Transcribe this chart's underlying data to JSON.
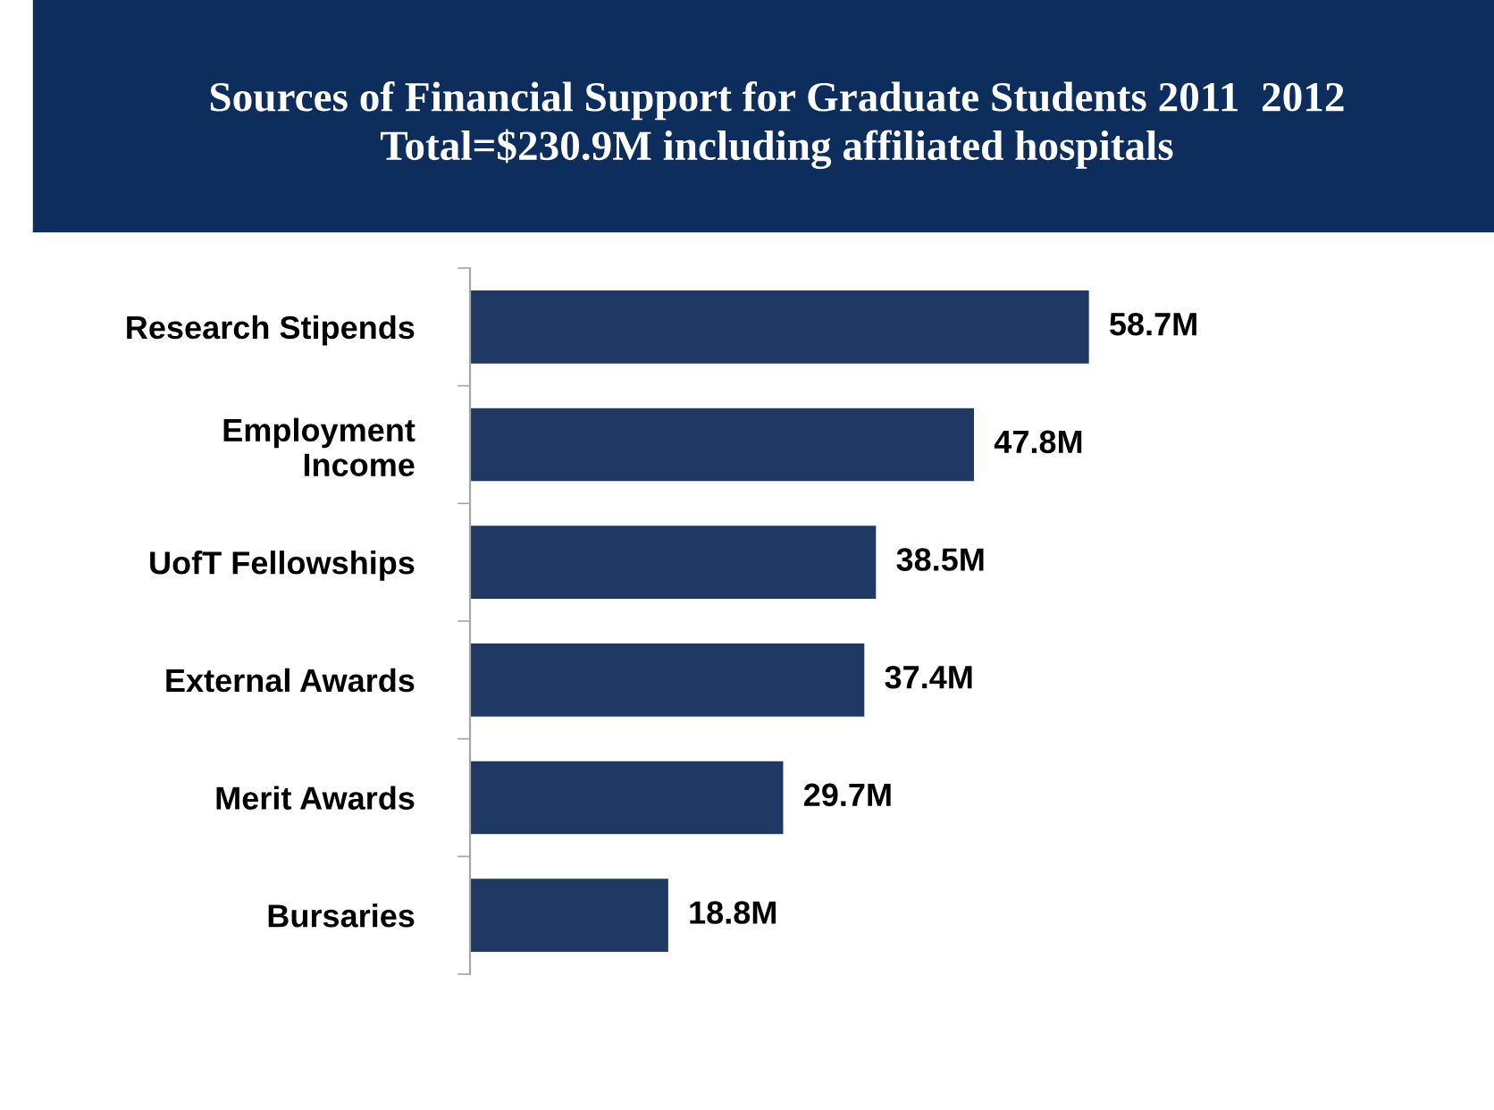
{
  "chart_data": {
    "type": "bar",
    "orientation": "horizontal",
    "title": "Sources of Financial Support for Graduate Students 2011  2012\nTotal=$230.9M including affiliated hospitals",
    "categories": [
      "Research Stipends",
      "Employment\nIncome",
      "UofT Fellowships",
      "External Awards",
      "Merit Awards",
      "Bursaries"
    ],
    "values": [
      58.7,
      47.8,
      38.5,
      37.4,
      29.7,
      18.8
    ],
    "value_labels": [
      "58.7M",
      "47.8M",
      "38.5M",
      "37.4M",
      "29.7M",
      "18.8M"
    ],
    "color": "#1f3864",
    "grid": false,
    "legend": false
  }
}
